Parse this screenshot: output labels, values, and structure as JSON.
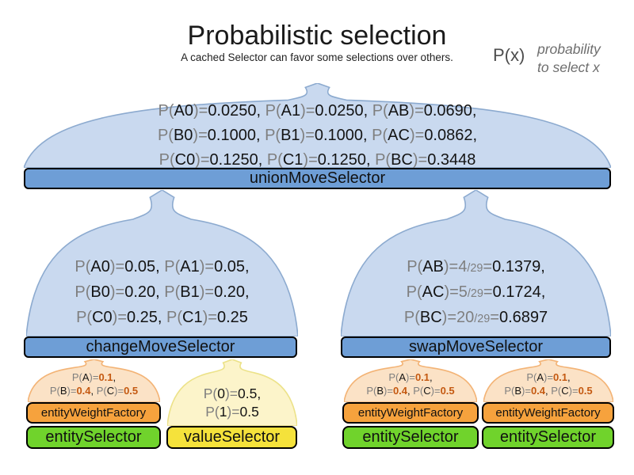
{
  "header": {
    "title": "Probabilistic selection",
    "subtitle": "A cached Selector can favor some selections over others.",
    "legend": {
      "symbol": "P(x)",
      "note_line1": "probability",
      "note_line2": "to select x"
    }
  },
  "colors": {
    "dome_blue_fill": "#c9d9ef",
    "dome_blue_stroke": "#8caacf",
    "bar_blue": "#6e9ed6",
    "dome_orange_fill": "#fbe2c6",
    "dome_orange_stroke": "#f3b375",
    "bar_orange": "#f6a23d",
    "bar_green": "#70d32c",
    "dome_yellow_fill": "#fcf4ca",
    "dome_yellow_stroke": "#ece289",
    "bar_yellow": "#f5e23b",
    "gray_text": "#7f7f7f",
    "orange_number": "#c45911"
  },
  "union": {
    "bar_label": "unionMoveSelector",
    "lines": [
      [
        {
          "t": "P(",
          "c": "g"
        },
        {
          "t": "A0",
          "c": "b"
        },
        {
          "t": ")=",
          "c": "g"
        },
        {
          "t": "0.0250, ",
          "c": "b"
        },
        {
          "t": "P(",
          "c": "g"
        },
        {
          "t": "A1",
          "c": "b"
        },
        {
          "t": ")=",
          "c": "g"
        },
        {
          "t": "0.0250, ",
          "c": "b"
        },
        {
          "t": "P(",
          "c": "g"
        },
        {
          "t": "AB",
          "c": "b"
        },
        {
          "t": ")=",
          "c": "g"
        },
        {
          "t": "0.0690,",
          "c": "b"
        }
      ],
      [
        {
          "t": "P(",
          "c": "g"
        },
        {
          "t": "B0",
          "c": "b"
        },
        {
          "t": ")=",
          "c": "g"
        },
        {
          "t": "0.1000, ",
          "c": "b"
        },
        {
          "t": "P(",
          "c": "g"
        },
        {
          "t": "B1",
          "c": "b"
        },
        {
          "t": ")=",
          "c": "g"
        },
        {
          "t": "0.1000, ",
          "c": "b"
        },
        {
          "t": "P(",
          "c": "g"
        },
        {
          "t": "AC",
          "c": "b"
        },
        {
          "t": ")=",
          "c": "g"
        },
        {
          "t": "0.0862,",
          "c": "b"
        }
      ],
      [
        {
          "t": "P(",
          "c": "g"
        },
        {
          "t": "C0",
          "c": "b"
        },
        {
          "t": ")=",
          "c": "g"
        },
        {
          "t": "0.1250, ",
          "c": "b"
        },
        {
          "t": "P(",
          "c": "g"
        },
        {
          "t": "C1",
          "c": "b"
        },
        {
          "t": ")=",
          "c": "g"
        },
        {
          "t": "0.1250, ",
          "c": "b"
        },
        {
          "t": "P(",
          "c": "g"
        },
        {
          "t": "BC",
          "c": "b"
        },
        {
          "t": ")=",
          "c": "g"
        },
        {
          "t": "0.3448",
          "c": "b"
        }
      ]
    ]
  },
  "change": {
    "bar_label": "changeMoveSelector",
    "lines": [
      [
        {
          "t": "P(",
          "c": "g"
        },
        {
          "t": "A0",
          "c": "b"
        },
        {
          "t": ")=",
          "c": "g"
        },
        {
          "t": "0.05, ",
          "c": "b"
        },
        {
          "t": "P(",
          "c": "g"
        },
        {
          "t": "A1",
          "c": "b"
        },
        {
          "t": ")=",
          "c": "g"
        },
        {
          "t": "0.05,",
          "c": "b"
        }
      ],
      [
        {
          "t": "P(",
          "c": "g"
        },
        {
          "t": "B0",
          "c": "b"
        },
        {
          "t": ")=",
          "c": "g"
        },
        {
          "t": "0.20, ",
          "c": "b"
        },
        {
          "t": "P(",
          "c": "g"
        },
        {
          "t": "B1",
          "c": "b"
        },
        {
          "t": ")=",
          "c": "g"
        },
        {
          "t": "0.20,",
          "c": "b"
        }
      ],
      [
        {
          "t": "P(",
          "c": "g"
        },
        {
          "t": "C0",
          "c": "b"
        },
        {
          "t": ")=",
          "c": "g"
        },
        {
          "t": "0.25, ",
          "c": "b"
        },
        {
          "t": "P(",
          "c": "g"
        },
        {
          "t": "C1",
          "c": "b"
        },
        {
          "t": ")=",
          "c": "g"
        },
        {
          "t": "0.25",
          "c": "b"
        }
      ]
    ]
  },
  "swap": {
    "bar_label": "swapMoveSelector",
    "lines": [
      [
        {
          "t": "P(",
          "c": "g"
        },
        {
          "t": "AB",
          "c": "b"
        },
        {
          "t": ")=",
          "c": "g"
        },
        {
          "t": "4",
          "c": "g"
        },
        {
          "t": "/29",
          "c": "s"
        },
        {
          "t": "=",
          "c": "g"
        },
        {
          "t": "0.1379,",
          "c": "b"
        }
      ],
      [
        {
          "t": "P(",
          "c": "g"
        },
        {
          "t": "AC",
          "c": "b"
        },
        {
          "t": ")=",
          "c": "g"
        },
        {
          "t": "5",
          "c": "g"
        },
        {
          "t": "/29",
          "c": "s"
        },
        {
          "t": "=",
          "c": "g"
        },
        {
          "t": "0.1724,",
          "c": "b"
        }
      ],
      [
        {
          "t": "P(",
          "c": "g"
        },
        {
          "t": "BC",
          "c": "b"
        },
        {
          "t": ")=",
          "c": "g"
        },
        {
          "t": "20",
          "c": "g"
        },
        {
          "t": "/29",
          "c": "s"
        },
        {
          "t": "=",
          "c": "g"
        },
        {
          "t": "0.6897",
          "c": "b"
        }
      ]
    ]
  },
  "entity_weight": {
    "bar_label": "entityWeightFactory",
    "lines": [
      [
        {
          "t": "P(",
          "c": "g"
        },
        {
          "t": "A",
          "c": "b"
        },
        {
          "t": ")=",
          "c": "g"
        },
        {
          "t": "0.1",
          "c": "o"
        },
        {
          "t": ",",
          "c": "b"
        }
      ],
      [
        {
          "t": "P(",
          "c": "g"
        },
        {
          "t": "B",
          "c": "b"
        },
        {
          "t": ")=",
          "c": "g"
        },
        {
          "t": "0.4",
          "c": "o"
        },
        {
          "t": ", ",
          "c": "b"
        },
        {
          "t": "P(",
          "c": "g"
        },
        {
          "t": "C",
          "c": "b"
        },
        {
          "t": ")=",
          "c": "g"
        },
        {
          "t": "0.5",
          "c": "o"
        }
      ]
    ]
  },
  "entity_selector_label": "entitySelector",
  "value_selector": {
    "bar_label": "valueSelector",
    "lines": [
      [
        {
          "t": "P(",
          "c": "g"
        },
        {
          "t": "0",
          "c": "b"
        },
        {
          "t": ")=",
          "c": "g"
        },
        {
          "t": "0.5,",
          "c": "b"
        }
      ],
      [
        {
          "t": "P(",
          "c": "g"
        },
        {
          "t": "1",
          "c": "b"
        },
        {
          "t": ")=",
          "c": "g"
        },
        {
          "t": "0.5",
          "c": "b"
        }
      ]
    ]
  }
}
